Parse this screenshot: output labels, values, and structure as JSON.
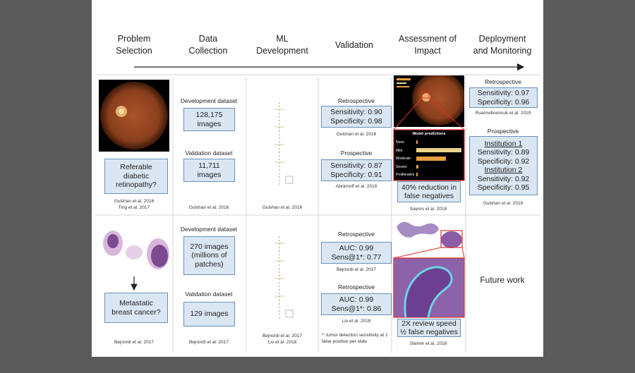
{
  "header": {
    "columns": [
      "Problem Selection",
      "Data Collection",
      "ML Development",
      "Validation",
      "Assessment of Impact",
      "Deployment and Monitoring"
    ]
  },
  "rows": [
    {
      "problem": {
        "question": "Referable diabetic retinopathy?",
        "citations": [
          "Gulshan et al. 2016",
          "Ting et al. 2017"
        ]
      },
      "data_collection": {
        "development_label": "Development dataset",
        "development_size": "128,175 images",
        "validation_label": "Validation dataset",
        "validation_size": "11,711 images",
        "citations": [
          "Gulshan et al. 2016"
        ]
      },
      "ml_development": {
        "citations": [
          "Gulshan et al. 2016"
        ]
      },
      "validation": {
        "studies": [
          {
            "kind": "Retrospective",
            "result": [
              "Sensitivity: 0.90",
              "Specificity: 0.98"
            ],
            "citation": "Gulshan et al. 2016"
          },
          {
            "kind": "Prospective",
            "result": [
              "Sensitivity: 0.87",
              "Specificity: 0.91"
            ],
            "citation": "Abràmoff et al. 2018"
          }
        ]
      },
      "impact": {
        "chart_title": "Model predictions",
        "chart_labels": [
          "None",
          "Mild",
          "Moderate",
          "Severe",
          "Proliferative"
        ],
        "result": [
          "40% reduction in",
          "false negatives"
        ],
        "citation": "Sayres et al. 2018"
      },
      "deployment": {
        "studies": [
          {
            "kind": "Retrospective",
            "result": [
              "Sensitivity: 0.97",
              "Specificity: 0.96"
            ],
            "citation": "Ruamviboonsuk et al. 2019"
          },
          {
            "kind": "Prospective",
            "groups": [
              {
                "institution": "Institution 1",
                "result": [
                  "Sensitivity: 0.89",
                  "Specificity: 0.92"
                ]
              },
              {
                "institution": "Institution 2",
                "result": [
                  "Sensitivity: 0.92",
                  "Specificity: 0.95"
                ]
              }
            ],
            "citation": "Gulshan et al. 2019"
          }
        ]
      }
    },
    {
      "problem": {
        "question": "Metastatic breast cancer?",
        "citations": [
          "Bejnordi et al. 2017"
        ]
      },
      "data_collection": {
        "development_label": "Development dataset",
        "development_size": "270 images (millions of patches)",
        "validation_label": "Validation dataset",
        "validation_size": "129 images",
        "citations": [
          "Bejnordi et al. 2017"
        ]
      },
      "ml_development": {
        "citations": [
          "Bejnordi et al. 2017",
          "Liu et al. 2018"
        ]
      },
      "validation": {
        "studies": [
          {
            "kind": "Retrospective",
            "result": [
              "AUC: 0.99",
              "Sens@1*: 0.77"
            ],
            "citation": "Bejnordi et al. 2017"
          },
          {
            "kind": "Retrospective",
            "result": [
              "AUC: 0.99",
              "Sens@1*: 0.86"
            ],
            "citation": "Liu et al. 2018"
          }
        ],
        "footnote": "*: tumor detection sensitivity at 1 false positive per slide"
      },
      "impact": {
        "result": [
          "2X review speed",
          "½ false negatives"
        ],
        "citation": "Steiner et al. 2018"
      },
      "deployment": {
        "text": "Future work"
      }
    }
  ]
}
